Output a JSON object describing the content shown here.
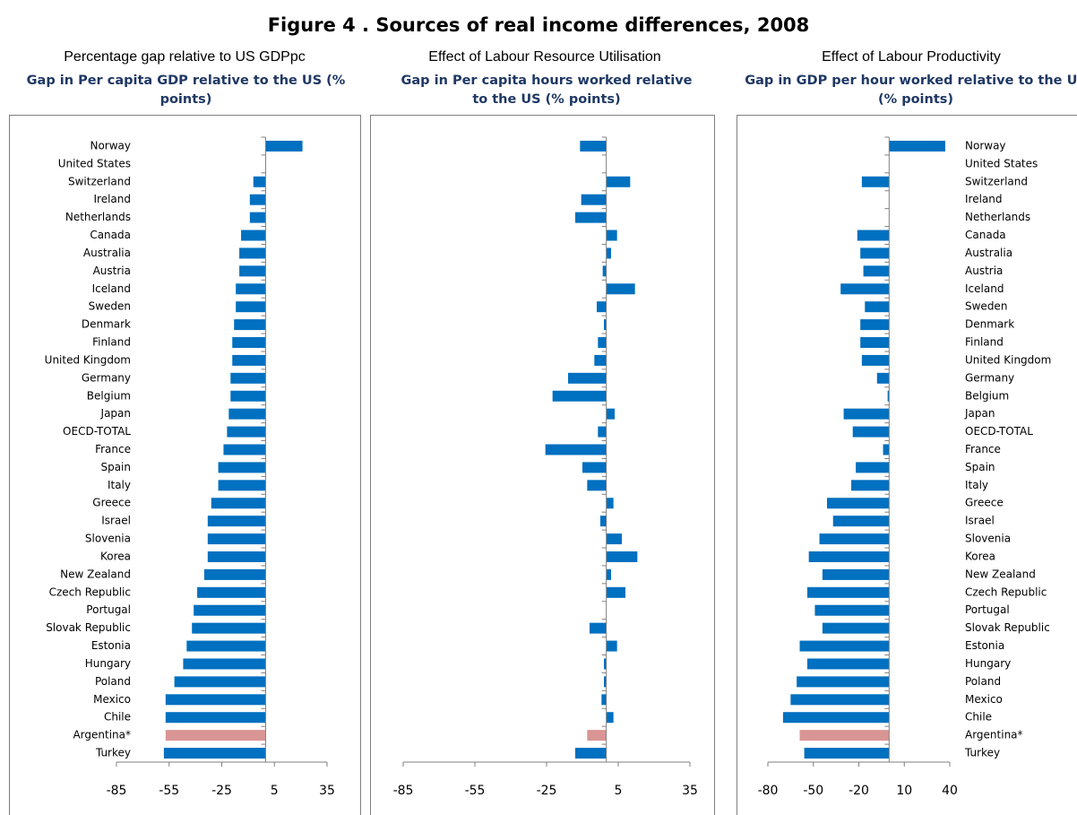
{
  "title": "Figure 4 . Sources of real income differences, 2008",
  "chart_data": [
    {
      "type": "bar",
      "orientation": "horizontal",
      "heading": "Percentage gap relative to US GDPpc",
      "title": "Gap in Per capita GDP relative to the US (% points)",
      "categories": [
        "Norway",
        "United States",
        "Switzerland",
        "Ireland",
        "Netherlands",
        "Canada",
        "Australia",
        "Austria",
        "Iceland",
        "Sweden",
        "Denmark",
        "Finland",
        "United Kingdom",
        "Germany",
        "Belgium",
        "Japan",
        "OECD-TOTAL",
        "France",
        "Spain",
        "Italy",
        "Greece",
        "Israel",
        "Slovenia",
        "Korea",
        "New Zealand",
        "Czech Republic",
        "Portugal",
        "Slovak Republic",
        "Estonia",
        "Hungary",
        "Poland",
        "Mexico",
        "Chile",
        "Argentina*",
        "Turkey"
      ],
      "values": [
        21,
        0,
        -7,
        -9,
        -9,
        -14,
        -15,
        -15,
        -17,
        -17,
        -18,
        -19,
        -19,
        -20,
        -20,
        -21,
        -22,
        -24,
        -27,
        -27,
        -31,
        -33,
        -33,
        -33,
        -35,
        -39,
        -41,
        -42,
        -45,
        -47,
        -52,
        -57,
        -57,
        -57,
        -58
      ],
      "colors": [
        "#0070c0",
        "#0070c0",
        "#0070c0",
        "#0070c0",
        "#0070c0",
        "#0070c0",
        "#0070c0",
        "#0070c0",
        "#0070c0",
        "#0070c0",
        "#0070c0",
        "#0070c0",
        "#0070c0",
        "#0070c0",
        "#0070c0",
        "#0070c0",
        "#0070c0",
        "#0070c0",
        "#0070c0",
        "#0070c0",
        "#0070c0",
        "#0070c0",
        "#0070c0",
        "#0070c0",
        "#0070c0",
        "#0070c0",
        "#0070c0",
        "#0070c0",
        "#0070c0",
        "#0070c0",
        "#0070c0",
        "#0070c0",
        "#0070c0",
        "#d99594",
        "#0070c0"
      ],
      "xlim": [
        -85,
        35
      ],
      "xticks": [
        -85,
        -55,
        -25,
        5,
        35
      ]
    },
    {
      "type": "bar",
      "orientation": "horizontal",
      "heading": "Effect of Labour Resource Utilisation",
      "title": "Gap in Per capita hours worked relative to the US (% points)",
      "values": [
        -11,
        0,
        10,
        -10.5,
        -13,
        4.5,
        2,
        -1.5,
        12,
        -4,
        -1,
        -3.5,
        -5,
        -16,
        -22.5,
        3.5,
        -3.5,
        -25.5,
        -10,
        -8,
        3,
        -2.5,
        6.5,
        13,
        2,
        8,
        0,
        -7,
        4.5,
        -1,
        -1,
        -2,
        3,
        -8,
        -13
      ],
      "colors": [
        "#0070c0",
        "#0070c0",
        "#0070c0",
        "#0070c0",
        "#0070c0",
        "#0070c0",
        "#0070c0",
        "#0070c0",
        "#0070c0",
        "#0070c0",
        "#0070c0",
        "#0070c0",
        "#0070c0",
        "#0070c0",
        "#0070c0",
        "#0070c0",
        "#0070c0",
        "#0070c0",
        "#0070c0",
        "#0070c0",
        "#0070c0",
        "#0070c0",
        "#0070c0",
        "#0070c0",
        "#0070c0",
        "#0070c0",
        "#0070c0",
        "#0070c0",
        "#0070c0",
        "#0070c0",
        "#0070c0",
        "#0070c0",
        "#0070c0",
        "#d99594",
        "#0070c0"
      ],
      "xlim": [
        -85,
        35
      ],
      "xticks": [
        -85,
        -55,
        -25,
        5,
        35
      ]
    },
    {
      "type": "bar",
      "orientation": "horizontal",
      "heading": "Effect of Labour Productivity",
      "title": "Gap in GDP per hour worked relative to the US (% points)",
      "categories": [
        "Norway",
        "United States",
        "Switzerland",
        "Ireland",
        "Netherlands",
        "Canada",
        "Australia",
        "Austria",
        "Iceland",
        "Sweden",
        "Denmark",
        "Finland",
        "United Kingdom",
        "Germany",
        "Belgium",
        "Japan",
        "OECD-TOTAL",
        "France",
        "Spain",
        "Italy",
        "Greece",
        "Israel",
        "Slovenia",
        "Korea",
        "New Zealand",
        "Czech Republic",
        "Portugal",
        "Slovak Republic",
        "Estonia",
        "Hungary",
        "Poland",
        "Mexico",
        "Chile",
        "Argentina*",
        "Turkey"
      ],
      "values": [
        37,
        0,
        -18,
        0,
        0,
        -21,
        -19,
        -17,
        -32,
        -16,
        -19,
        -19,
        -18,
        -8,
        -1,
        -30,
        -24,
        -4,
        -22,
        -25,
        -41,
        -37,
        -46,
        -53,
        -44,
        -54,
        -49,
        -44,
        -59,
        -54,
        -61,
        -65,
        -70,
        -59,
        -56
      ],
      "colors": [
        "#0070c0",
        "#0070c0",
        "#0070c0",
        "#0070c0",
        "#0070c0",
        "#0070c0",
        "#0070c0",
        "#0070c0",
        "#0070c0",
        "#0070c0",
        "#0070c0",
        "#0070c0",
        "#0070c0",
        "#0070c0",
        "#0070c0",
        "#0070c0",
        "#0070c0",
        "#0070c0",
        "#0070c0",
        "#0070c0",
        "#0070c0",
        "#0070c0",
        "#0070c0",
        "#0070c0",
        "#0070c0",
        "#0070c0",
        "#0070c0",
        "#0070c0",
        "#0070c0",
        "#0070c0",
        "#0070c0",
        "#0070c0",
        "#0070c0",
        "#d99594",
        "#0070c0"
      ],
      "xlim": [
        -80,
        40
      ],
      "xticks": [
        -80,
        -50,
        -20,
        10,
        40
      ]
    }
  ]
}
